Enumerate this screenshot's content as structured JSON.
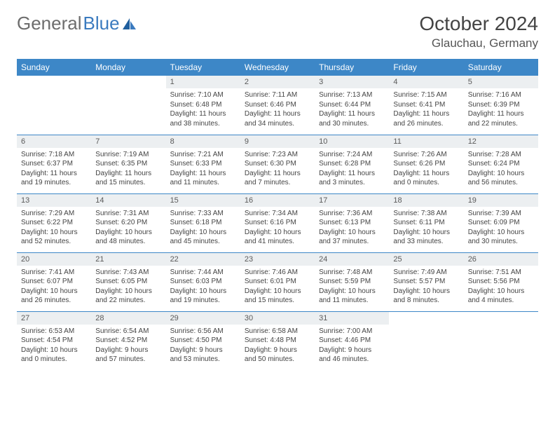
{
  "logo": {
    "word1": "General",
    "word2": "Blue"
  },
  "title": "October 2024",
  "location": "Glauchau, Germany",
  "colors": {
    "header_bg": "#3d87c7",
    "header_text": "#ffffff",
    "daynum_bg": "#eceff1",
    "row_border": "#3d87c7",
    "logo_gray": "#6d6d6d",
    "logo_blue": "#3b7bbf"
  },
  "weekdays": [
    "Sunday",
    "Monday",
    "Tuesday",
    "Wednesday",
    "Thursday",
    "Friday",
    "Saturday"
  ],
  "weeks": [
    [
      null,
      null,
      {
        "n": "1",
        "sr": "Sunrise: 7:10 AM",
        "ss": "Sunset: 6:48 PM",
        "d1": "Daylight: 11 hours",
        "d2": "and 38 minutes."
      },
      {
        "n": "2",
        "sr": "Sunrise: 7:11 AM",
        "ss": "Sunset: 6:46 PM",
        "d1": "Daylight: 11 hours",
        "d2": "and 34 minutes."
      },
      {
        "n": "3",
        "sr": "Sunrise: 7:13 AM",
        "ss": "Sunset: 6:44 PM",
        "d1": "Daylight: 11 hours",
        "d2": "and 30 minutes."
      },
      {
        "n": "4",
        "sr": "Sunrise: 7:15 AM",
        "ss": "Sunset: 6:41 PM",
        "d1": "Daylight: 11 hours",
        "d2": "and 26 minutes."
      },
      {
        "n": "5",
        "sr": "Sunrise: 7:16 AM",
        "ss": "Sunset: 6:39 PM",
        "d1": "Daylight: 11 hours",
        "d2": "and 22 minutes."
      }
    ],
    [
      {
        "n": "6",
        "sr": "Sunrise: 7:18 AM",
        "ss": "Sunset: 6:37 PM",
        "d1": "Daylight: 11 hours",
        "d2": "and 19 minutes."
      },
      {
        "n": "7",
        "sr": "Sunrise: 7:19 AM",
        "ss": "Sunset: 6:35 PM",
        "d1": "Daylight: 11 hours",
        "d2": "and 15 minutes."
      },
      {
        "n": "8",
        "sr": "Sunrise: 7:21 AM",
        "ss": "Sunset: 6:33 PM",
        "d1": "Daylight: 11 hours",
        "d2": "and 11 minutes."
      },
      {
        "n": "9",
        "sr": "Sunrise: 7:23 AM",
        "ss": "Sunset: 6:30 PM",
        "d1": "Daylight: 11 hours",
        "d2": "and 7 minutes."
      },
      {
        "n": "10",
        "sr": "Sunrise: 7:24 AM",
        "ss": "Sunset: 6:28 PM",
        "d1": "Daylight: 11 hours",
        "d2": "and 3 minutes."
      },
      {
        "n": "11",
        "sr": "Sunrise: 7:26 AM",
        "ss": "Sunset: 6:26 PM",
        "d1": "Daylight: 11 hours",
        "d2": "and 0 minutes."
      },
      {
        "n": "12",
        "sr": "Sunrise: 7:28 AM",
        "ss": "Sunset: 6:24 PM",
        "d1": "Daylight: 10 hours",
        "d2": "and 56 minutes."
      }
    ],
    [
      {
        "n": "13",
        "sr": "Sunrise: 7:29 AM",
        "ss": "Sunset: 6:22 PM",
        "d1": "Daylight: 10 hours",
        "d2": "and 52 minutes."
      },
      {
        "n": "14",
        "sr": "Sunrise: 7:31 AM",
        "ss": "Sunset: 6:20 PM",
        "d1": "Daylight: 10 hours",
        "d2": "and 48 minutes."
      },
      {
        "n": "15",
        "sr": "Sunrise: 7:33 AM",
        "ss": "Sunset: 6:18 PM",
        "d1": "Daylight: 10 hours",
        "d2": "and 45 minutes."
      },
      {
        "n": "16",
        "sr": "Sunrise: 7:34 AM",
        "ss": "Sunset: 6:16 PM",
        "d1": "Daylight: 10 hours",
        "d2": "and 41 minutes."
      },
      {
        "n": "17",
        "sr": "Sunrise: 7:36 AM",
        "ss": "Sunset: 6:13 PM",
        "d1": "Daylight: 10 hours",
        "d2": "and 37 minutes."
      },
      {
        "n": "18",
        "sr": "Sunrise: 7:38 AM",
        "ss": "Sunset: 6:11 PM",
        "d1": "Daylight: 10 hours",
        "d2": "and 33 minutes."
      },
      {
        "n": "19",
        "sr": "Sunrise: 7:39 AM",
        "ss": "Sunset: 6:09 PM",
        "d1": "Daylight: 10 hours",
        "d2": "and 30 minutes."
      }
    ],
    [
      {
        "n": "20",
        "sr": "Sunrise: 7:41 AM",
        "ss": "Sunset: 6:07 PM",
        "d1": "Daylight: 10 hours",
        "d2": "and 26 minutes."
      },
      {
        "n": "21",
        "sr": "Sunrise: 7:43 AM",
        "ss": "Sunset: 6:05 PM",
        "d1": "Daylight: 10 hours",
        "d2": "and 22 minutes."
      },
      {
        "n": "22",
        "sr": "Sunrise: 7:44 AM",
        "ss": "Sunset: 6:03 PM",
        "d1": "Daylight: 10 hours",
        "d2": "and 19 minutes."
      },
      {
        "n": "23",
        "sr": "Sunrise: 7:46 AM",
        "ss": "Sunset: 6:01 PM",
        "d1": "Daylight: 10 hours",
        "d2": "and 15 minutes."
      },
      {
        "n": "24",
        "sr": "Sunrise: 7:48 AM",
        "ss": "Sunset: 5:59 PM",
        "d1": "Daylight: 10 hours",
        "d2": "and 11 minutes."
      },
      {
        "n": "25",
        "sr": "Sunrise: 7:49 AM",
        "ss": "Sunset: 5:57 PM",
        "d1": "Daylight: 10 hours",
        "d2": "and 8 minutes."
      },
      {
        "n": "26",
        "sr": "Sunrise: 7:51 AM",
        "ss": "Sunset: 5:56 PM",
        "d1": "Daylight: 10 hours",
        "d2": "and 4 minutes."
      }
    ],
    [
      {
        "n": "27",
        "sr": "Sunrise: 6:53 AM",
        "ss": "Sunset: 4:54 PM",
        "d1": "Daylight: 10 hours",
        "d2": "and 0 minutes."
      },
      {
        "n": "28",
        "sr": "Sunrise: 6:54 AM",
        "ss": "Sunset: 4:52 PM",
        "d1": "Daylight: 9 hours",
        "d2": "and 57 minutes."
      },
      {
        "n": "29",
        "sr": "Sunrise: 6:56 AM",
        "ss": "Sunset: 4:50 PM",
        "d1": "Daylight: 9 hours",
        "d2": "and 53 minutes."
      },
      {
        "n": "30",
        "sr": "Sunrise: 6:58 AM",
        "ss": "Sunset: 4:48 PM",
        "d1": "Daylight: 9 hours",
        "d2": "and 50 minutes."
      },
      {
        "n": "31",
        "sr": "Sunrise: 7:00 AM",
        "ss": "Sunset: 4:46 PM",
        "d1": "Daylight: 9 hours",
        "d2": "and 46 minutes."
      },
      null,
      null
    ]
  ]
}
